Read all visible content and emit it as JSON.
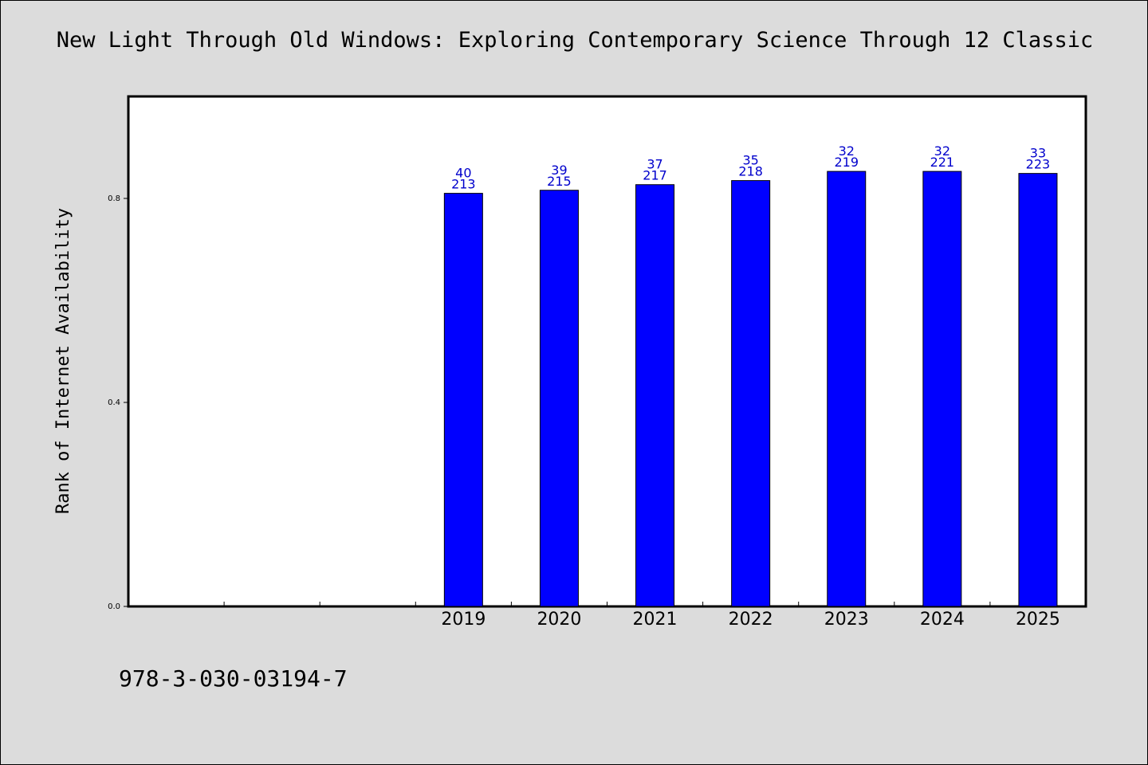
{
  "chart_data": {
    "type": "bar",
    "title": "New Light Through Old Windows: Exploring Contemporary Science Through 12 Classic",
    "ylabel": "Rank of Internet Availability",
    "xlabel": "",
    "ylim": [
      0,
      1.0
    ],
    "yticks": [
      "0.0",
      "0.4",
      "0.8"
    ],
    "categories": [
      "",
      "",
      "",
      "2019",
      "2020",
      "2021",
      "2022",
      "2023",
      "2024",
      "2025"
    ],
    "values": [
      null,
      null,
      null,
      0.81,
      0.816,
      0.827,
      0.835,
      0.853,
      0.853,
      0.849
    ],
    "labels_top": [
      "",
      "",
      "",
      "40",
      "39",
      "37",
      "35",
      "32",
      "32",
      "33"
    ],
    "labels_bottom": [
      "",
      "",
      "",
      "213",
      "215",
      "217",
      "218",
      "219",
      "221",
      "223"
    ],
    "bar_color": "#0000ff",
    "label_color": "#0000cc",
    "grid": false,
    "legend": "none"
  },
  "footer": {
    "isbn": "978-3-030-03194-7"
  }
}
